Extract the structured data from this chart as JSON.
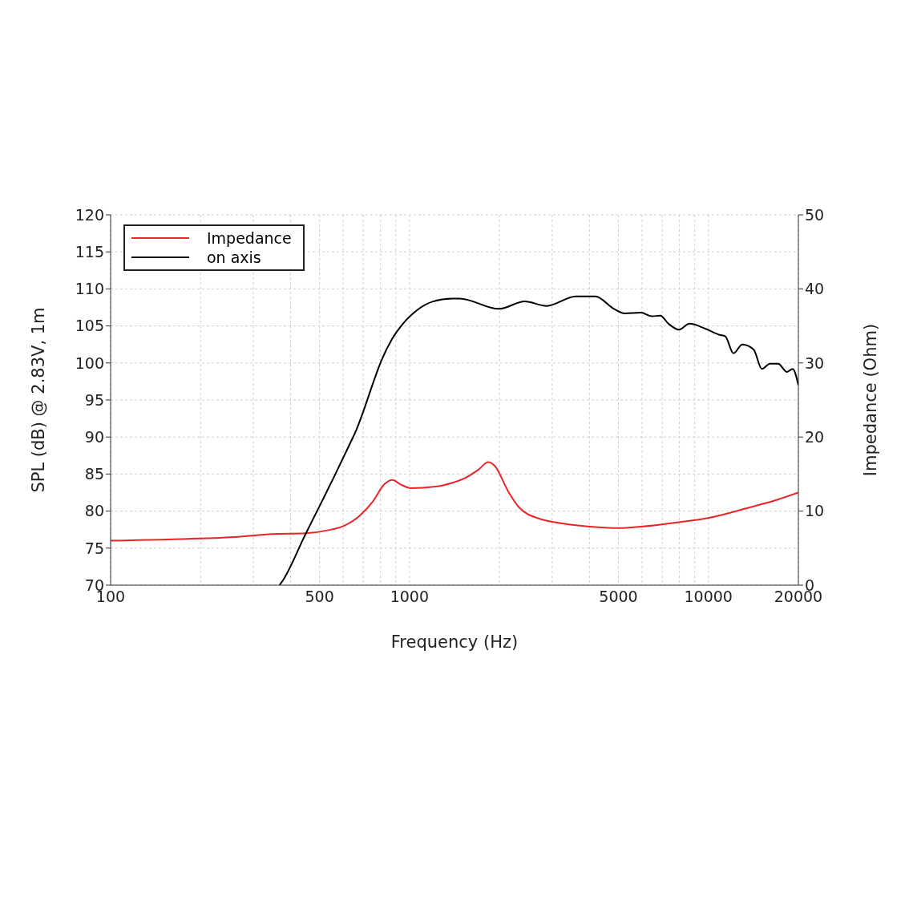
{
  "chart_data": {
    "type": "line",
    "xlabel": "Frequency (Hz)",
    "ylabel": "SPL (dB) @ 2.83V, 1m",
    "y2label": "Impedance (Ohm)",
    "log": "x",
    "xlim": [
      100,
      20000
    ],
    "xticks": [
      100,
      {
        "value": 200,
        "label": null
      },
      {
        "value": 300,
        "label": null
      },
      {
        "value": 400,
        "label": null
      },
      500,
      {
        "value": 600,
        "label": null
      },
      {
        "value": 700,
        "label": null
      },
      {
        "value": 800,
        "label": null
      },
      {
        "value": 900,
        "label": null
      },
      1000,
      {
        "value": 2000,
        "label": null
      },
      {
        "value": 3000,
        "label": null
      },
      {
        "value": 4000,
        "label": null
      },
      5000,
      {
        "value": 6000,
        "label": null
      },
      {
        "value": 7000,
        "label": null
      },
      {
        "value": 8000,
        "label": null
      },
      {
        "value": 9000,
        "label": null
      },
      10000,
      20000
    ],
    "ylim": [
      70,
      120
    ],
    "yticks": [
      70,
      75,
      80,
      85,
      90,
      95,
      100,
      105,
      110,
      115,
      120
    ],
    "y2lim": [
      0,
      50
    ],
    "y2ticks": [
      0,
      10,
      20,
      30,
      40,
      50
    ],
    "grid": true,
    "legend": "top left",
    "line_style": "solid",
    "marker": "none",
    "series": [
      {
        "name": "Impedance",
        "color": "#e8252a",
        "axis": "y2",
        "x": [
          100,
          199,
          260,
          349,
          449,
          531,
          602,
          682,
          754,
          823,
          876,
          933,
          1012,
          1221,
          1384,
          1539,
          1701,
          1833,
          1928,
          2143,
          2326,
          2754,
          3062,
          4009,
          5048,
          5943,
          7972,
          10050,
          13740,
          16890,
          20000
        ],
        "values": [
          6.0,
          6.3,
          6.5,
          6.9,
          7.0,
          7.4,
          8.0,
          9.4,
          11.3,
          13.6,
          14.2,
          13.6,
          13.1,
          13.3,
          13.8,
          14.5,
          15.6,
          16.6,
          16.1,
          12.6,
          10.5,
          8.9,
          8.5,
          7.9,
          7.7,
          7.9,
          8.5,
          9.1,
          10.5,
          11.5,
          12.5
        ]
      },
      {
        "name": "on axis",
        "color": "#000000",
        "x": [
          367,
          372,
          449,
          509,
          565,
          625,
          666,
          704,
          754,
          803,
          876,
          951,
          1057,
          1198,
          1384,
          1472,
          1989,
          2429,
          2876,
          3602,
          4186,
          4834,
          5244,
          5943,
          6486,
          6902,
          7350,
          7972,
          8650,
          9796,
          10900,
          11390,
          12130,
          12990,
          14180,
          15090,
          16070,
          17100,
          18320,
          19140,
          20000
        ],
        "values": [
          70,
          70.3,
          76.9,
          81.3,
          85.0,
          88.7,
          91.1,
          93.7,
          97.2,
          100.2,
          103.3,
          105.3,
          107.1,
          108.3,
          108.7,
          108.7,
          107.3,
          108.3,
          107.7,
          109.0,
          109.0,
          107.3,
          106.7,
          106.8,
          106.3,
          106.4,
          105.3,
          104.5,
          105.3,
          104.6,
          103.8,
          103.6,
          101.3,
          102.5,
          101.8,
          99.2,
          99.9,
          99.9,
          98.8,
          99.2,
          97.0
        ]
      }
    ]
  }
}
